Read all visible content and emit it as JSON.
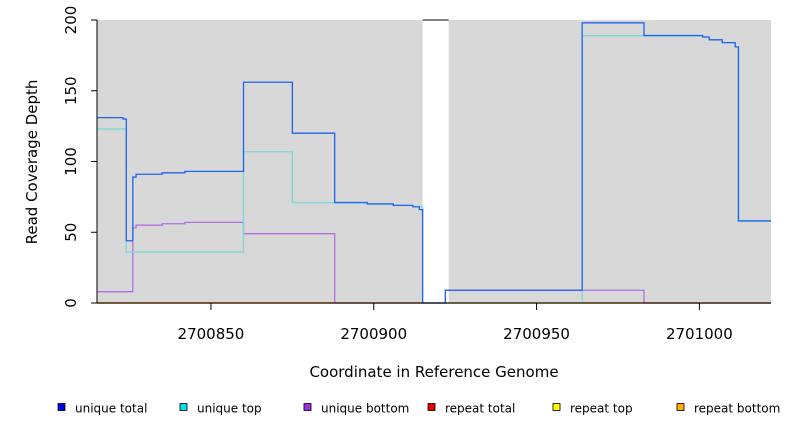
{
  "chart_data": {
    "type": "line",
    "title": "",
    "xlabel": "Coordinate in Reference Genome",
    "ylabel": "Read Coverage Depth",
    "xlim": [
      2700815,
      2701022
    ],
    "ylim": [
      0,
      200
    ],
    "x_ticks": [
      2700850,
      2700900,
      2700950,
      2701000
    ],
    "y_ticks": [
      0,
      50,
      100,
      150,
      200
    ],
    "grid": false,
    "background_color": "#d8d8d8",
    "shaded_regions": [
      [
        2700815,
        2700915
      ],
      [
        2700923,
        2701022
      ]
    ],
    "legend_position": "bottom",
    "series": [
      {
        "name": "unique total",
        "color": "#0000dd",
        "line_color": "#1e64ee",
        "points": [
          [
            2700815,
            131
          ],
          [
            2700823,
            131
          ],
          [
            2700823,
            130
          ],
          [
            2700824,
            130
          ],
          [
            2700824,
            44
          ],
          [
            2700826,
            44
          ],
          [
            2700826,
            89
          ],
          [
            2700827,
            89
          ],
          [
            2700827,
            91
          ],
          [
            2700835,
            91
          ],
          [
            2700835,
            92
          ],
          [
            2700842,
            92
          ],
          [
            2700842,
            93
          ],
          [
            2700860,
            93
          ],
          [
            2700860,
            156
          ],
          [
            2700875,
            156
          ],
          [
            2700875,
            120
          ],
          [
            2700888,
            120
          ],
          [
            2700888,
            71
          ],
          [
            2700898,
            71
          ],
          [
            2700898,
            70
          ],
          [
            2700906,
            70
          ],
          [
            2700906,
            69
          ],
          [
            2700912,
            69
          ],
          [
            2700912,
            68
          ],
          [
            2700914,
            68
          ],
          [
            2700914,
            66
          ],
          [
            2700915,
            66
          ],
          [
            2700915,
            0
          ],
          [
            2700922,
            0
          ],
          [
            2700922,
            9
          ],
          [
            2700964,
            9
          ],
          [
            2700964,
            198
          ],
          [
            2700983,
            198
          ],
          [
            2700983,
            189
          ],
          [
            2701001,
            189
          ],
          [
            2701001,
            188
          ],
          [
            2701003,
            188
          ],
          [
            2701003,
            186
          ],
          [
            2701007,
            186
          ],
          [
            2701007,
            184
          ],
          [
            2701011,
            184
          ],
          [
            2701011,
            181
          ],
          [
            2701012,
            181
          ],
          [
            2701012,
            58
          ],
          [
            2701022,
            58
          ]
        ]
      },
      {
        "name": "unique top",
        "color": "#00e0e0",
        "line_color": "#7fd8d8",
        "points": [
          [
            2700815,
            123
          ],
          [
            2700824,
            123
          ],
          [
            2700824,
            36
          ],
          [
            2700860,
            36
          ],
          [
            2700860,
            107
          ],
          [
            2700875,
            107
          ],
          [
            2700875,
            71
          ],
          [
            2700898,
            71
          ],
          [
            2700898,
            70
          ],
          [
            2700906,
            70
          ],
          [
            2700906,
            69
          ],
          [
            2700912,
            69
          ],
          [
            2700912,
            68
          ],
          [
            2700915,
            68
          ],
          [
            2700915,
            0
          ],
          [
            2700964,
            0
          ],
          [
            2700964,
            189
          ],
          [
            2701001,
            189
          ],
          [
            2701001,
            188
          ],
          [
            2701003,
            188
          ],
          [
            2701003,
            186
          ],
          [
            2701007,
            186
          ],
          [
            2701007,
            184
          ],
          [
            2701011,
            184
          ],
          [
            2701011,
            181
          ],
          [
            2701012,
            181
          ],
          [
            2701012,
            58
          ],
          [
            2701022,
            58
          ]
        ]
      },
      {
        "name": "unique bottom",
        "color": "#9933dd",
        "line_color": "#b070e0",
        "points": [
          [
            2700815,
            8
          ],
          [
            2700826,
            8
          ],
          [
            2700826,
            53
          ],
          [
            2700827,
            53
          ],
          [
            2700827,
            55
          ],
          [
            2700835,
            55
          ],
          [
            2700835,
            56
          ],
          [
            2700842,
            56
          ],
          [
            2700842,
            57
          ],
          [
            2700860,
            57
          ],
          [
            2700860,
            49
          ],
          [
            2700888,
            49
          ],
          [
            2700888,
            0
          ],
          [
            2700922,
            0
          ],
          [
            2700922,
            9
          ],
          [
            2700983,
            9
          ],
          [
            2700983,
            0
          ],
          [
            2701022,
            0
          ]
        ]
      },
      {
        "name": "repeat total",
        "color": "#ee0000",
        "line_color": "#cc3333",
        "points": [
          [
            2700815,
            0
          ],
          [
            2701022,
            0
          ]
        ]
      },
      {
        "name": "repeat top",
        "color": "#ffff00",
        "line_color": "#dddd00",
        "points": [
          [
            2700815,
            0
          ],
          [
            2701022,
            0
          ]
        ]
      },
      {
        "name": "repeat bottom",
        "color": "#ffaa00",
        "line_color": "#ffaa00",
        "points": [
          [
            2700815,
            0
          ],
          [
            2701022,
            0
          ]
        ]
      }
    ]
  }
}
